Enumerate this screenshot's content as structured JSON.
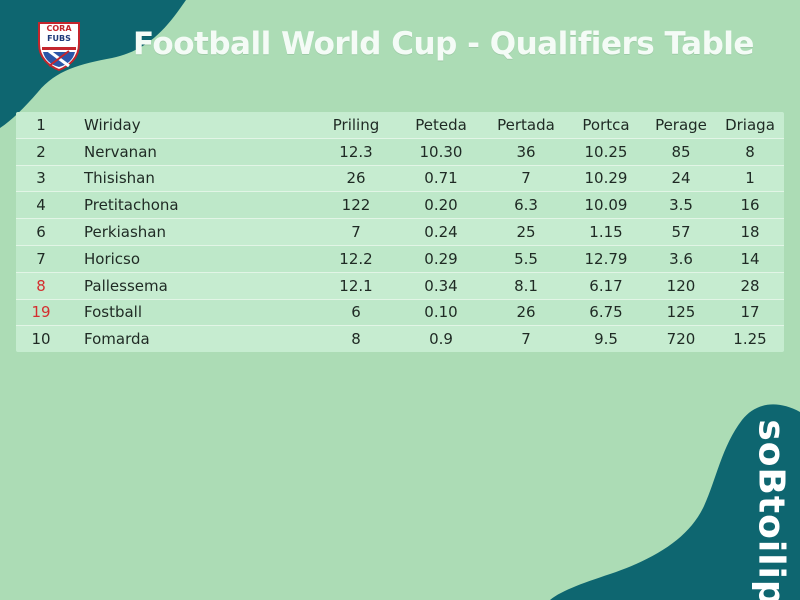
{
  "colors": {
    "background": "#acdcb5",
    "accent_teal": "#0e6670",
    "table_row": "#c6ecd0",
    "highlight_red": "#d42f2f"
  },
  "logo": {
    "text_top": "CORA",
    "text_bottom": "FUBS",
    "icon": "shield-crest-icon"
  },
  "title": "Football World Cup - Qualifiers Table",
  "brand_vertical": "soBtoilip",
  "table": {
    "rows": [
      {
        "rank": "1",
        "name": "Wiriday",
        "c1": "Priling",
        "c2": "Peteda",
        "c3": "Pertada",
        "c4": "Portca",
        "c5": "Perage",
        "c6": "Driaga",
        "highlight": false
      },
      {
        "rank": "2",
        "name": "Nervanan",
        "c1": "12.3",
        "c2": "10.30",
        "c3": "36",
        "c4": "10.25",
        "c5": "85",
        "c6": "8",
        "highlight": false
      },
      {
        "rank": "3",
        "name": "Thisishan",
        "c1": "26",
        "c2": "0.71",
        "c3": "7",
        "c4": "10.29",
        "c5": "24",
        "c6": "1",
        "highlight": false
      },
      {
        "rank": "4",
        "name": "Pretitachona",
        "c1": "122",
        "c2": "0.20",
        "c3": "6.3",
        "c4": "10.09",
        "c5": "3.5",
        "c6": "16",
        "highlight": false
      },
      {
        "rank": "6",
        "name": "Perkiashan",
        "c1": "7",
        "c2": "0.24",
        "c3": "25",
        "c4": "1.15",
        "c5": "57",
        "c6": "18",
        "highlight": false
      },
      {
        "rank": "7",
        "name": "Horicso",
        "c1": "12.2",
        "c2": "0.29",
        "c3": "5.5",
        "c4": "12.79",
        "c5": "3.6",
        "c6": "14",
        "highlight": false
      },
      {
        "rank": "8",
        "name": "Pallessema",
        "c1": "12.1",
        "c2": "0.34",
        "c3": "8.1",
        "c4": "6.17",
        "c5": "120",
        "c6": "28",
        "highlight": true
      },
      {
        "rank": "19",
        "name": "Fostball",
        "c1": "6",
        "c2": "0.10",
        "c3": "26",
        "c4": "6.75",
        "c5": "125",
        "c6": "17",
        "highlight": true
      },
      {
        "rank": "10",
        "name": "Fomarda",
        "c1": "8",
        "c2": "0.9",
        "c3": "7",
        "c4": "9.5",
        "c5": "720",
        "c6": "1.25",
        "highlight": false
      }
    ]
  }
}
